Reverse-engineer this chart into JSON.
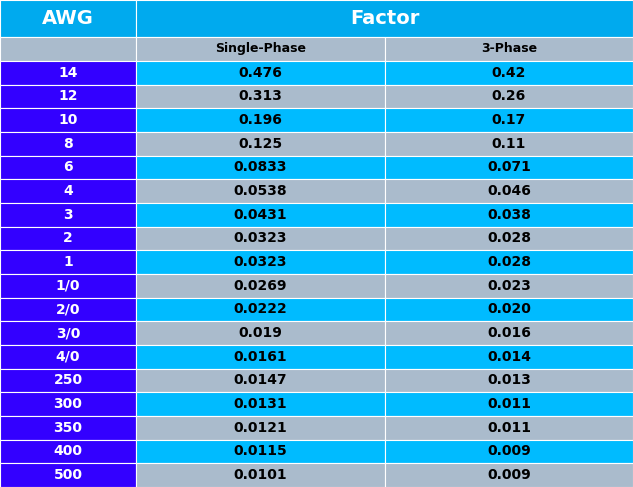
{
  "title": "Factor",
  "col_awg": "AWG",
  "col_single": "Single-Phase",
  "col_three": "3-Phase",
  "rows": [
    [
      "14",
      "0.476",
      "0.42"
    ],
    [
      "12",
      "0.313",
      "0.26"
    ],
    [
      "10",
      "0.196",
      "0.17"
    ],
    [
      "8",
      "0.125",
      "0.11"
    ],
    [
      "6",
      "0.0833",
      "0.071"
    ],
    [
      "4",
      "0.0538",
      "0.046"
    ],
    [
      "3",
      "0.0431",
      "0.038"
    ],
    [
      "2",
      "0.0323",
      "0.028"
    ],
    [
      "1",
      "0.0323",
      "0.028"
    ],
    [
      "1/0",
      "0.0269",
      "0.023"
    ],
    [
      "2/0",
      "0.0222",
      "0.020"
    ],
    [
      "3/0",
      "0.019",
      "0.016"
    ],
    [
      "4/0",
      "0.0161",
      "0.014"
    ],
    [
      "250",
      "0.0147",
      "0.013"
    ],
    [
      "300",
      "0.0131",
      "0.011"
    ],
    [
      "350",
      "0.0121",
      "0.011"
    ],
    [
      "400",
      "0.0115",
      "0.009"
    ],
    [
      "500",
      "0.0101",
      "0.009"
    ]
  ],
  "color_header_cyan": "#00AAEE",
  "color_awg_data_cell": "#3300FF",
  "color_row_bright": "#00BBFF",
  "color_row_light": "#AABBCC",
  "color_awg_text": "#FFFFFF",
  "color_header_text": "#FFFFFF",
  "color_subheader_text": "#000000",
  "color_data_text": "#000000",
  "figsize": [
    6.33,
    4.87
  ],
  "dpi": 100
}
